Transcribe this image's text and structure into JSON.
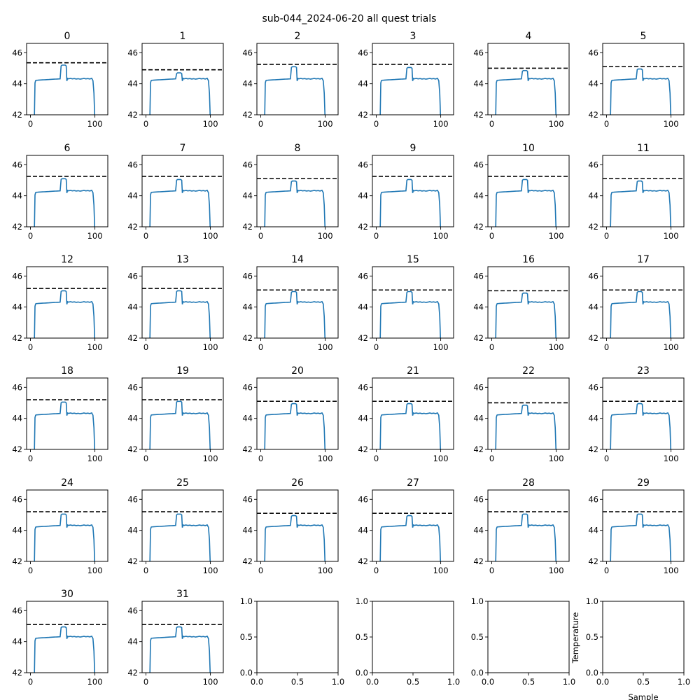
{
  "figure": {
    "suptitle": "sub-044_2024-06-20 all quest trials",
    "xlabel": "Sample",
    "ylabel": "Temperature"
  },
  "colors": {
    "trace": "#1f77b4",
    "threshold": "#000000",
    "frame": "#000000"
  },
  "chart_data": {
    "type": "line",
    "grid": false,
    "layout": "6x6 small multiples",
    "x": "sample index 0-100",
    "xlim": [
      -6,
      120
    ],
    "ylim": [
      42,
      46.6
    ],
    "xticks": [
      0,
      100
    ],
    "yticks": [
      42,
      44,
      46
    ],
    "trace_shape": {
      "rise_sample": 7,
      "plateau": 44.3,
      "bump_start": 46,
      "bump_end": 57,
      "fall_sample": 100
    },
    "panels": [
      {
        "title": "0",
        "threshold": 45.35,
        "peak": 45.2
      },
      {
        "title": "1",
        "threshold": 44.9,
        "peak": 44.7
      },
      {
        "title": "2",
        "threshold": 45.25,
        "peak": 45.1
      },
      {
        "title": "3",
        "threshold": 45.25,
        "peak": 45.05
      },
      {
        "title": "4",
        "threshold": 45.0,
        "peak": 44.85
      },
      {
        "title": "5",
        "threshold": 45.1,
        "peak": 44.95
      },
      {
        "title": "6",
        "threshold": 45.25,
        "peak": 45.1
      },
      {
        "title": "7",
        "threshold": 45.25,
        "peak": 45.05
      },
      {
        "title": "8",
        "threshold": 45.1,
        "peak": 44.95
      },
      {
        "title": "9",
        "threshold": 45.25,
        "peak": 45.05
      },
      {
        "title": "10",
        "threshold": 45.25,
        "peak": 45.05
      },
      {
        "title": "11",
        "threshold": 45.1,
        "peak": 44.95
      },
      {
        "title": "12",
        "threshold": 45.2,
        "peak": 45.05
      },
      {
        "title": "13",
        "threshold": 45.2,
        "peak": 45.05
      },
      {
        "title": "14",
        "threshold": 45.1,
        "peak": 45.0
      },
      {
        "title": "15",
        "threshold": 45.1,
        "peak": 45.0
      },
      {
        "title": "16",
        "threshold": 45.05,
        "peak": 44.9
      },
      {
        "title": "17",
        "threshold": 45.1,
        "peak": 45.0
      },
      {
        "title": "18",
        "threshold": 45.2,
        "peak": 45.05
      },
      {
        "title": "19",
        "threshold": 45.2,
        "peak": 45.1
      },
      {
        "title": "20",
        "threshold": 45.1,
        "peak": 44.95
      },
      {
        "title": "21",
        "threshold": 45.1,
        "peak": 44.95
      },
      {
        "title": "22",
        "threshold": 45.0,
        "peak": 44.85
      },
      {
        "title": "23",
        "threshold": 45.1,
        "peak": 44.95
      },
      {
        "title": "24",
        "threshold": 45.2,
        "peak": 45.05
      },
      {
        "title": "25",
        "threshold": 45.2,
        "peak": 45.05
      },
      {
        "title": "26",
        "threshold": 45.1,
        "peak": 44.95
      },
      {
        "title": "27",
        "threshold": 45.1,
        "peak": 44.95
      },
      {
        "title": "28",
        "threshold": 45.2,
        "peak": 45.05
      },
      {
        "title": "29",
        "threshold": 45.2,
        "peak": 45.05
      },
      {
        "title": "30",
        "threshold": 45.1,
        "peak": 44.95
      },
      {
        "title": "31",
        "threshold": 45.1,
        "peak": 44.95
      }
    ],
    "empty_panels": {
      "count": 4,
      "xlim": [
        0,
        1
      ],
      "ylim": [
        0,
        1
      ],
      "xticks": [
        "0.0",
        "0.5",
        "1.0"
      ],
      "yticks": [
        "0.0",
        "0.5",
        "1.0"
      ]
    }
  }
}
